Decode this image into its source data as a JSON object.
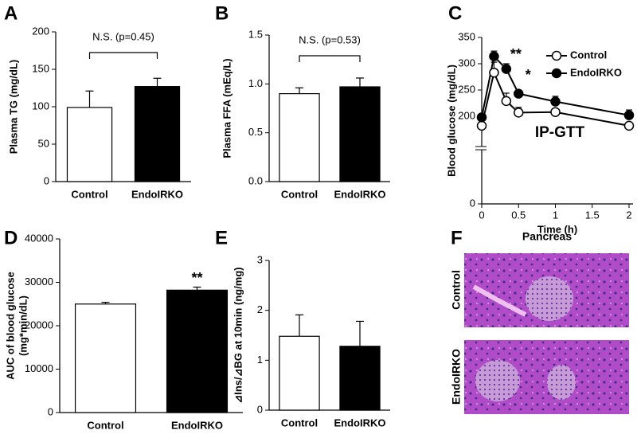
{
  "chart_data": [
    {
      "type": "bar",
      "panel": "A",
      "ylabel": "Plasma TG (mg/dL)",
      "categories": [
        "Control",
        "EndoIRKO"
      ],
      "values": [
        99,
        127
      ],
      "errors": [
        22,
        11
      ],
      "colors": [
        "#ffffff",
        "#000000"
      ],
      "ylim": [
        0,
        200
      ],
      "yticks": [
        0,
        50,
        100,
        150,
        200
      ],
      "bracket_annotation": "N.S. (p=0.45)"
    },
    {
      "type": "bar",
      "panel": "B",
      "ylabel": "Plasma FFA (mEq/L)",
      "categories": [
        "Control",
        "EndoIRKO"
      ],
      "values": [
        0.9,
        0.97
      ],
      "errors": [
        0.06,
        0.09
      ],
      "colors": [
        "#ffffff",
        "#000000"
      ],
      "ylim": [
        0,
        1.5
      ],
      "yticks": [
        {
          "value": 0,
          "label": "0.0"
        },
        {
          "value": 0.5,
          "label": "0.5"
        },
        {
          "value": 1,
          "label": "1.0"
        },
        {
          "value": 1.5,
          "label": "1.5"
        }
      ],
      "bracket_annotation": "N.S. (p=0.53)"
    },
    {
      "type": "line",
      "panel": "C",
      "ylabel": "Blood glucose (mg/dL)",
      "xlabel": "Time (h)",
      "inset_text": "IP-GTT",
      "x": [
        0,
        0.1667,
        0.3333,
        0.5,
        1,
        2
      ],
      "series": [
        {
          "name": "Control",
          "color": "#ffffff",
          "values": [
            182,
            283,
            229,
            207,
            208,
            182
          ],
          "errors": [
            0,
            20,
            15,
            10,
            5,
            5
          ]
        },
        {
          "name": "EndoIRKO",
          "color": "#000000",
          "values": [
            198,
            314,
            290,
            243,
            228,
            202
          ],
          "errors": [
            0,
            10,
            10,
            5,
            10,
            10
          ]
        }
      ],
      "xlim": [
        0,
        2
      ],
      "xticks": [
        0,
        0.5,
        1,
        1.5,
        2
      ],
      "ylim": [
        0,
        350
      ],
      "ybreak": [
        0,
        150
      ],
      "yticks": [
        0,
        200,
        250,
        300,
        350
      ],
      "annotations": [
        {
          "x": 0.3333,
          "text": "**"
        },
        {
          "x": 0.5,
          "text": "*"
        }
      ],
      "legend": "upper-right"
    },
    {
      "type": "bar",
      "panel": "D",
      "ylabel": [
        "AUC of blood glucose",
        "(mg*min/dL)"
      ],
      "categories": [
        "Control",
        "EndoIRKO"
      ],
      "values": [
        25000,
        28200
      ],
      "errors": [
        400,
        700
      ],
      "colors": [
        "#ffffff",
        "#000000"
      ],
      "ylim": [
        0,
        40000
      ],
      "yticks": [
        0,
        10000,
        20000,
        30000,
        40000
      ],
      "star_annotation": "**"
    },
    {
      "type": "bar",
      "panel": "E",
      "ylabel": "⊿Ins/⊿BG at 10min (ng/mg)",
      "categories": [
        "Control",
        "EndoIRKO"
      ],
      "values": [
        1.48,
        1.28
      ],
      "errors": [
        0.43,
        0.5
      ],
      "colors": [
        "#ffffff",
        "#000000"
      ],
      "ylim": [
        0,
        3
      ],
      "yticks": [
        0,
        1,
        2,
        3
      ]
    }
  ],
  "image_panel": {
    "panel": "F",
    "title": "Pancreas",
    "rows": [
      "Control",
      "EndoIRKO"
    ]
  }
}
